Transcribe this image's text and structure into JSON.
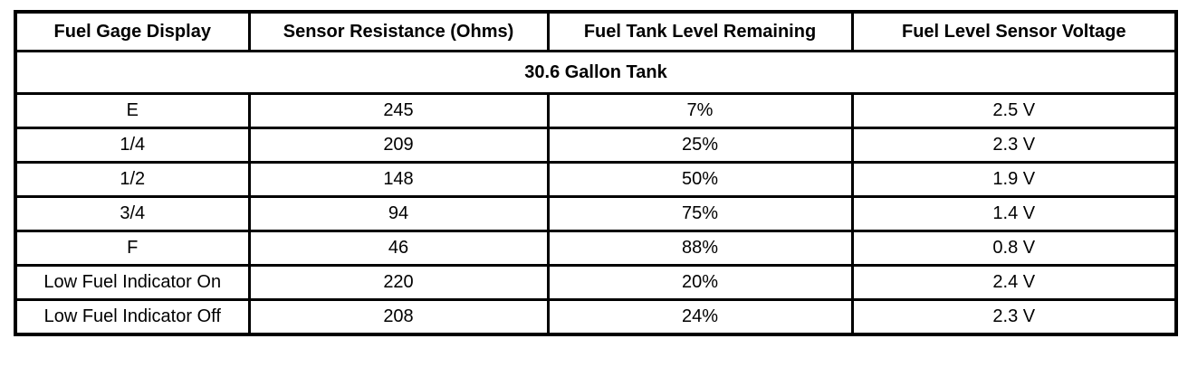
{
  "table": {
    "headers": [
      "Fuel Gage Display",
      "Sensor Resistance (Ohms)",
      "Fuel Tank Level Remaining",
      "Fuel Level Sensor Voltage"
    ],
    "subheader": "30.6 Gallon Tank",
    "rows": [
      [
        "E",
        "245",
        "7%",
        "2.5 V"
      ],
      [
        "1/4",
        "209",
        "25%",
        "2.3 V"
      ],
      [
        "1/2",
        "148",
        "50%",
        "1.9 V"
      ],
      [
        "3/4",
        "94",
        "75%",
        "1.4 V"
      ],
      [
        "F",
        "46",
        "88%",
        "0.8 V"
      ],
      [
        "Low Fuel Indicator On",
        "220",
        "20%",
        "2.4 V"
      ],
      [
        "Low Fuel Indicator Off",
        "208",
        "24%",
        "2.3 V"
      ]
    ],
    "colors": {
      "border": "#000000",
      "background": "#ffffff",
      "text": "#000000"
    }
  }
}
